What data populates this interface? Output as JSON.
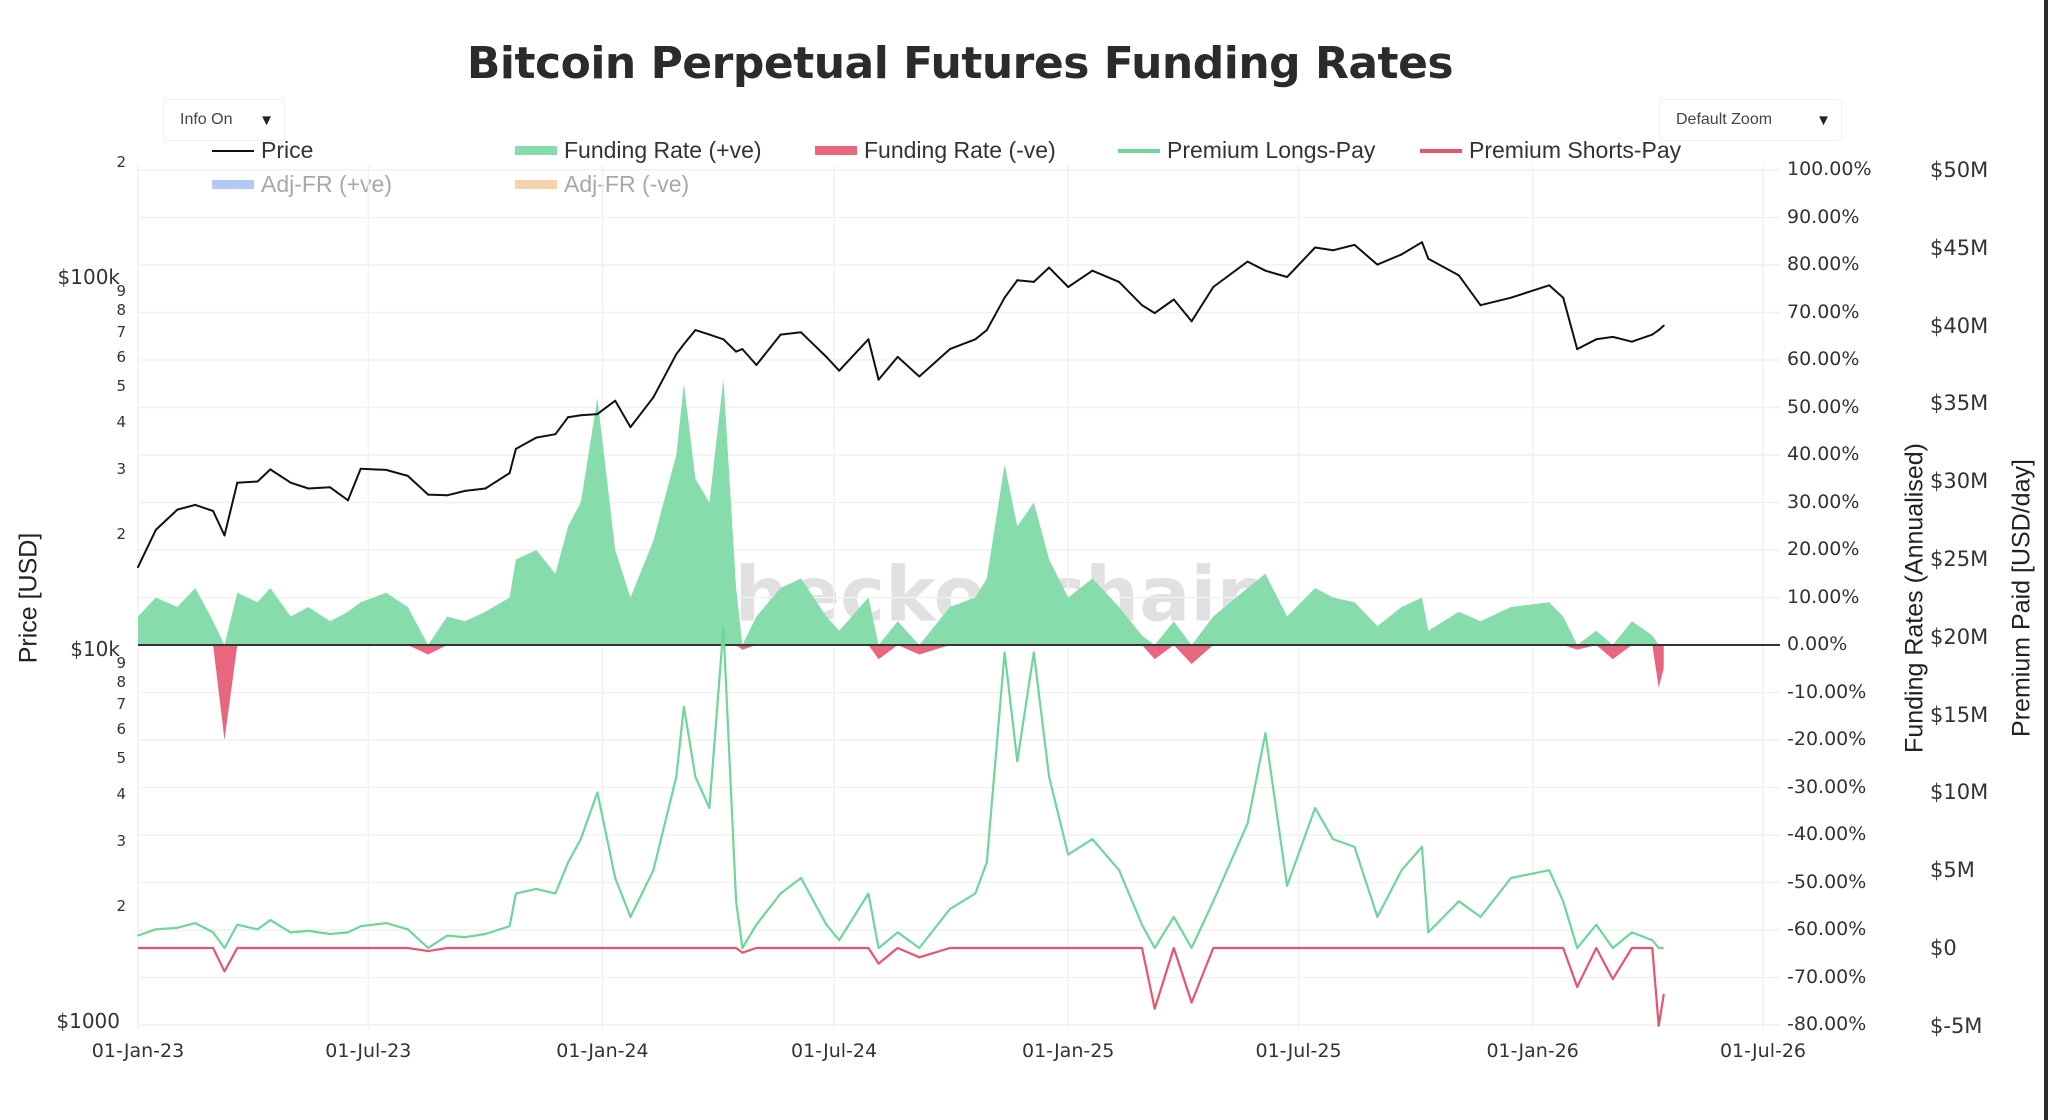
{
  "title": "Bitcoin Perpetual Futures Funding Rates",
  "controls": {
    "info_label": "Info On",
    "zoom_label": "Default Zoom"
  },
  "watermark": "checkonchain",
  "colors": {
    "price": "#111111",
    "fr_pos": "#86dcaa",
    "fr_neg": "#e8677f",
    "prem_long": "#6fd69a",
    "prem_short": "#e5556f",
    "adj_pos": "#b3c9f5",
    "adj_neg": "#f6d3ad",
    "zero_line": "#333333"
  },
  "legend": [
    {
      "label": "Price",
      "kind": "line",
      "color": "#111111",
      "visible": true
    },
    {
      "label": "Funding Rate (+ve)",
      "kind": "area",
      "color": "#86dcaa",
      "visible": true
    },
    {
      "label": "Funding Rate (-ve)",
      "kind": "area",
      "color": "#e8677f",
      "visible": true
    },
    {
      "label": "Premium Longs-Pay",
      "kind": "line",
      "color": "#6fd69a",
      "visible": true
    },
    {
      "label": "Premium Shorts-Pay",
      "kind": "line",
      "color": "#e5556f",
      "visible": true
    },
    {
      "label": "Adj-FR (+ve)",
      "kind": "area",
      "color": "#b3c9f5",
      "visible": false
    },
    {
      "label": "Adj-FR (-ve)",
      "kind": "area",
      "color": "#f6d3ad",
      "visible": false
    }
  ],
  "chart_data": {
    "type": "line",
    "title": "Bitcoin Perpetual Futures Funding Rates",
    "xlabel": "",
    "x_ticks": [
      "01-Jan-23",
      "01-Jul-23",
      "01-Jan-24",
      "01-Jul-24",
      "01-Jan-25",
      "01-Jul-25",
      "01-Jan-26",
      "01-Jul-26"
    ],
    "x_tick_dates": [
      "2023-01-01",
      "2023-07-01",
      "2024-01-01",
      "2024-07-01",
      "2025-01-01",
      "2025-07-01",
      "2026-01-01",
      "2026-07-01"
    ],
    "xlim": [
      "2023-01-01",
      "2026-07-01"
    ],
    "y_left": {
      "label": "Price [USD]",
      "scale": "log",
      "range": [
        1000,
        200000
      ],
      "major_ticks": [
        {
          "value": 1000,
          "label": "$1000"
        },
        {
          "value": 10000,
          "label": "$10k"
        },
        {
          "value": 100000,
          "label": "$100k"
        }
      ],
      "minor_ticks": [
        {
          "value": 2000,
          "label": "2"
        },
        {
          "value": 3000,
          "label": "3"
        },
        {
          "value": 4000,
          "label": "4"
        },
        {
          "value": 5000,
          "label": "5"
        },
        {
          "value": 6000,
          "label": "6"
        },
        {
          "value": 7000,
          "label": "7"
        },
        {
          "value": 8000,
          "label": "8"
        },
        {
          "value": 9000,
          "label": "9"
        },
        {
          "value": 20000,
          "label": "2"
        },
        {
          "value": 30000,
          "label": "3"
        },
        {
          "value": 40000,
          "label": "4"
        },
        {
          "value": 50000,
          "label": "5"
        },
        {
          "value": 60000,
          "label": "6"
        },
        {
          "value": 70000,
          "label": "7"
        },
        {
          "value": 80000,
          "label": "8"
        },
        {
          "value": 90000,
          "label": "9"
        },
        {
          "value": 200000,
          "label": "2"
        }
      ]
    },
    "y_right1": {
      "label": "Funding Rates (Annualised)",
      "range": [
        -80,
        100
      ],
      "ticks": [
        "100.00%",
        "90.00%",
        "80.00%",
        "70.00%",
        "60.00%",
        "50.00%",
        "40.00%",
        "30.00%",
        "20.00%",
        "10.00%",
        "0.00%",
        "-10.00%",
        "-20.00%",
        "-30.00%",
        "-40.00%",
        "-50.00%",
        "-60.00%",
        "-70.00%",
        "-80.00%"
      ],
      "tick_values": [
        100,
        90,
        80,
        70,
        60,
        50,
        40,
        30,
        20,
        10,
        0,
        -10,
        -20,
        -30,
        -40,
        -50,
        -60,
        -70,
        -80
      ]
    },
    "y_right2": {
      "label": "Premium Paid [USD/day]",
      "range": [
        -5,
        50
      ],
      "unit": "M USD",
      "ticks": [
        "$50M",
        "$45M",
        "$40M",
        "$35M",
        "$30M",
        "$25M",
        "$20M",
        "$15M",
        "$10M",
        "$5M",
        "$0",
        "$-5M"
      ],
      "tick_values": [
        50,
        45,
        40,
        35,
        30,
        25,
        20,
        15,
        10,
        5,
        0,
        -5
      ]
    },
    "grid": true,
    "legend_position": "top",
    "series_names": [
      "Price",
      "Funding Rate (+ve)",
      "Funding Rate (-ve)",
      "Premium Longs-Pay",
      "Premium Shorts-Pay",
      "Adj-FR (+ve)",
      "Adj-FR (-ve)"
    ],
    "columns": [
      "date",
      "price_usd",
      "funding_rate_pct",
      "premium_musd_per_day"
    ],
    "rows": [
      [
        "2023-01-01",
        16600,
        6,
        0.8
      ],
      [
        "2023-01-15",
        20900,
        10,
        1.2
      ],
      [
        "2023-02-01",
        23700,
        8,
        1.3
      ],
      [
        "2023-02-15",
        24400,
        12,
        1.6
      ],
      [
        "2023-03-01",
        23500,
        5,
        1.0
      ],
      [
        "2023-03-10",
        20200,
        -20,
        -1.5
      ],
      [
        "2023-03-20",
        28000,
        11,
        1.5
      ],
      [
        "2023-04-05",
        28200,
        9,
        1.2
      ],
      [
        "2023-04-15",
        30400,
        12,
        1.8
      ],
      [
        "2023-05-01",
        28000,
        6,
        1.0
      ],
      [
        "2023-05-15",
        27000,
        8,
        1.1
      ],
      [
        "2023-06-01",
        27200,
        5,
        0.9
      ],
      [
        "2023-06-15",
        25100,
        7,
        1.0
      ],
      [
        "2023-06-25",
        30500,
        9,
        1.4
      ],
      [
        "2023-07-15",
        30300,
        11,
        1.6
      ],
      [
        "2023-08-01",
        29200,
        8,
        1.2
      ],
      [
        "2023-08-17",
        26000,
        -2,
        -0.2
      ],
      [
        "2023-09-01",
        25900,
        6,
        0.8
      ],
      [
        "2023-09-15",
        26600,
        5,
        0.7
      ],
      [
        "2023-10-01",
        27000,
        7,
        0.9
      ],
      [
        "2023-10-20",
        29700,
        10,
        1.4
      ],
      [
        "2023-10-25",
        34500,
        18,
        3.5
      ],
      [
        "2023-11-10",
        37000,
        20,
        3.8
      ],
      [
        "2023-11-25",
        37800,
        15,
        3.5
      ],
      [
        "2023-12-05",
        42000,
        25,
        5.5
      ],
      [
        "2023-12-15",
        42500,
        30,
        7.0
      ],
      [
        "2023-12-28",
        42800,
        52,
        10.0
      ],
      [
        "2024-01-11",
        46500,
        20,
        4.5
      ],
      [
        "2024-01-23",
        39500,
        10,
        2.0
      ],
      [
        "2024-02-10",
        47500,
        22,
        5.0
      ],
      [
        "2024-02-28",
        62000,
        40,
        11.0
      ],
      [
        "2024-03-05",
        66000,
        55,
        15.5
      ],
      [
        "2024-03-14",
        72000,
        35,
        11.0
      ],
      [
        "2024-03-25",
        70000,
        30,
        9.0
      ],
      [
        "2024-04-05",
        68000,
        56,
        20.6
      ],
      [
        "2024-04-15",
        63000,
        12,
        3.0
      ],
      [
        "2024-04-20",
        64000,
        -1,
        -0.3
      ],
      [
        "2024-05-01",
        58000,
        6,
        1.5
      ],
      [
        "2024-05-20",
        70000,
        12,
        3.5
      ],
      [
        "2024-06-05",
        71000,
        14,
        4.5
      ],
      [
        "2024-06-25",
        61000,
        6,
        1.5
      ],
      [
        "2024-07-05",
        56000,
        3,
        0.5
      ],
      [
        "2024-07-28",
        68000,
        10,
        3.5
      ],
      [
        "2024-08-05",
        53000,
        -3,
        -1.0
      ],
      [
        "2024-08-20",
        61000,
        5,
        1.0
      ],
      [
        "2024-09-06",
        54000,
        -2,
        -0.6
      ],
      [
        "2024-09-30",
        64000,
        8,
        2.5
      ],
      [
        "2024-10-20",
        68000,
        10,
        3.5
      ],
      [
        "2024-10-29",
        72000,
        14,
        5.5
      ],
      [
        "2024-11-12",
        88000,
        38,
        19.0
      ],
      [
        "2024-11-22",
        98000,
        25,
        12.0
      ],
      [
        "2024-12-05",
        97000,
        30,
        19.0
      ],
      [
        "2024-12-17",
        106000,
        18,
        11.0
      ],
      [
        "2025-01-01",
        94000,
        10,
        6.0
      ],
      [
        "2025-01-20",
        104000,
        14,
        7.0
      ],
      [
        "2025-02-10",
        97000,
        8,
        5.0
      ],
      [
        "2025-02-28",
        84000,
        2,
        1.5
      ],
      [
        "2025-03-10",
        80000,
        -3,
        -3.9
      ],
      [
        "2025-03-25",
        87000,
        5,
        2.0
      ],
      [
        "2025-04-08",
        76000,
        -4,
        -3.5
      ],
      [
        "2025-04-25",
        94000,
        6,
        3.0
      ],
      [
        "2025-05-22",
        110000,
        12,
        8.0
      ],
      [
        "2025-06-05",
        104000,
        15,
        13.8
      ],
      [
        "2025-06-22",
        100000,
        6,
        4.0
      ],
      [
        "2025-07-14",
        120000,
        12,
        9.0
      ],
      [
        "2025-07-28",
        118000,
        10,
        7.0
      ],
      [
        "2025-08-14",
        122000,
        9,
        6.5
      ],
      [
        "2025-09-01",
        108000,
        4,
        2.0
      ],
      [
        "2025-09-20",
        115000,
        8,
        5.0
      ],
      [
        "2025-10-06",
        124000,
        10,
        6.5
      ],
      [
        "2025-10-11",
        112000,
        3,
        1.0
      ],
      [
        "2025-11-04",
        101000,
        7,
        3.0
      ],
      [
        "2025-11-21",
        84000,
        5,
        2.0
      ],
      [
        "2025-12-15",
        88000,
        8,
        4.5
      ],
      [
        "2026-01-14",
        95000,
        9,
        5.0
      ],
      [
        "2026-01-25",
        88000,
        6,
        3.0
      ],
      [
        "2026-02-05",
        64000,
        -1,
        -2.5
      ],
      [
        "2026-02-20",
        68000,
        3,
        1.5
      ],
      [
        "2026-03-05",
        69000,
        -3,
        -2.0
      ],
      [
        "2026-03-20",
        67000,
        5,
        1.0
      ],
      [
        "2026-04-05",
        70000,
        2,
        0.5
      ],
      [
        "2026-04-10",
        72000,
        -9,
        -5.0
      ],
      [
        "2026-04-14",
        74000,
        -5,
        -3.0
      ]
    ]
  }
}
